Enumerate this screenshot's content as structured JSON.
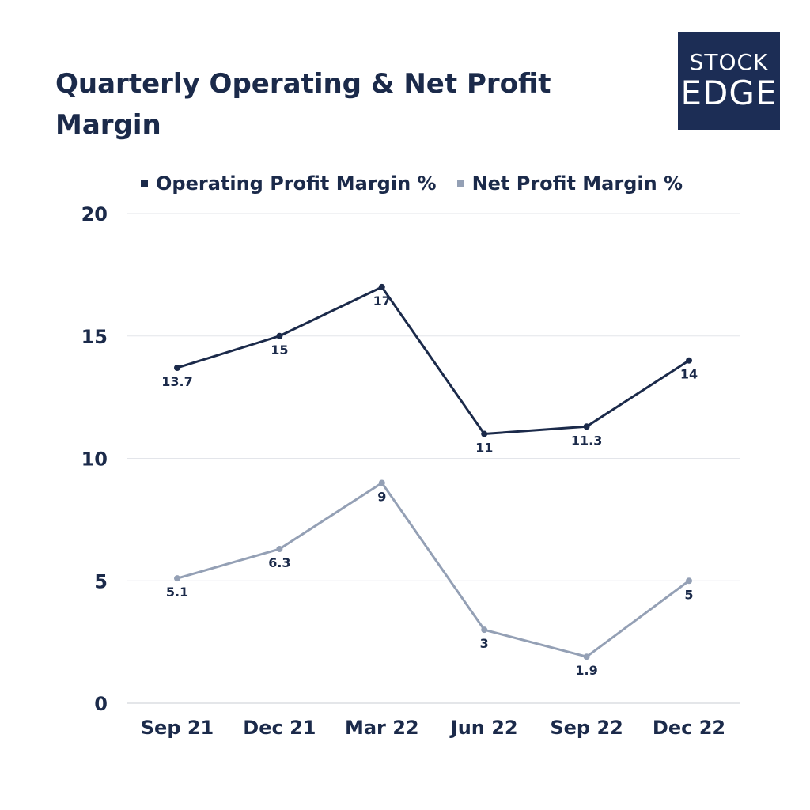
{
  "chart_data": {
    "type": "line",
    "title": "Quarterly Operating & Net Profit Margin",
    "xlabel": "",
    "ylabel": "",
    "categories": [
      "Sep 21",
      "Dec 21",
      "Mar 22",
      "Jun 22",
      "Sep 22",
      "Dec 22"
    ],
    "ylim": [
      0,
      20
    ],
    "yticks": [
      0,
      5,
      10,
      15,
      20
    ],
    "grid": true,
    "legend": "top",
    "series": [
      {
        "name": "Operating Profit Margin %",
        "values": [
          13.7,
          15,
          17,
          11,
          11.3,
          14
        ],
        "labels": [
          "13.7",
          "15",
          "17",
          "11",
          "11.3",
          "14"
        ],
        "color": "#1b2a4a"
      },
      {
        "name": "Net Profit Margin %",
        "values": [
          5.1,
          6.3,
          9,
          3,
          1.9,
          5
        ],
        "labels": [
          "5.1",
          "6.3",
          "9",
          "3",
          "1.9",
          "5"
        ],
        "color": "#94a0b5"
      }
    ]
  },
  "logo": {
    "line1": "STOCK",
    "line2": "EDGE",
    "background": "#1c2d55"
  }
}
